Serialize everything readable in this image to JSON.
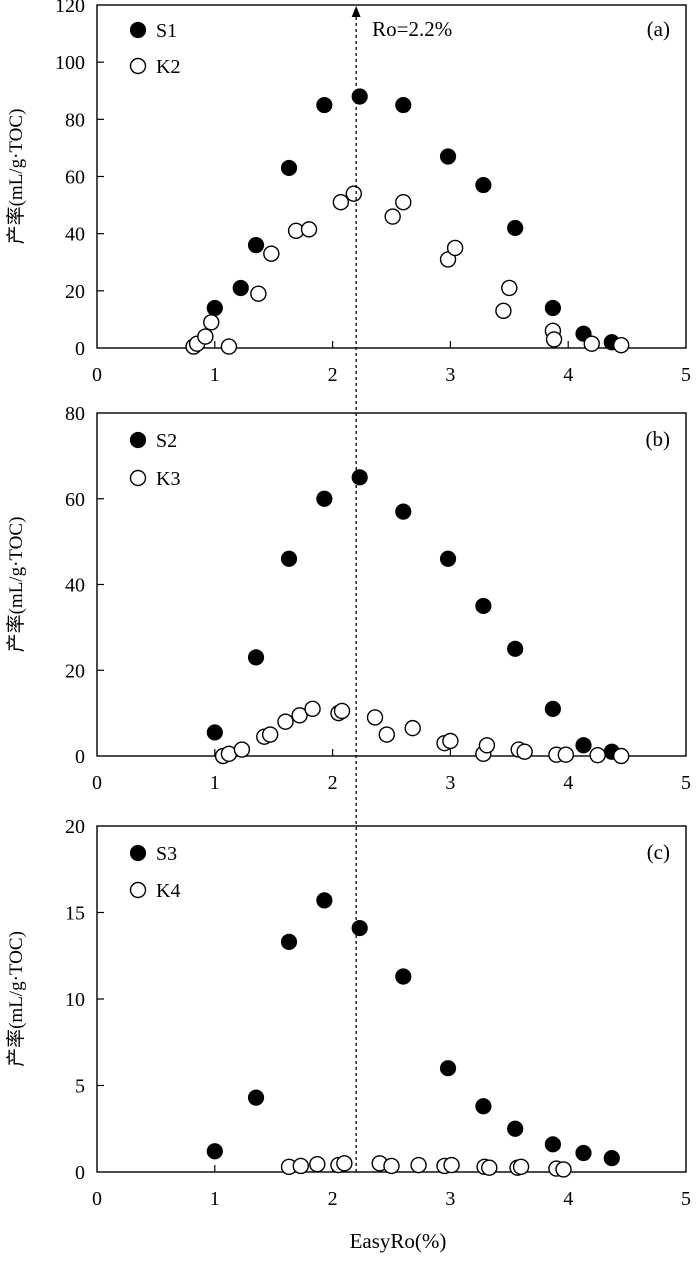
{
  "chart_data": [
    {
      "type": "scatter",
      "panel_label": "(a)",
      "annotation": "Ro=2.2%",
      "annotation_x": 2.2,
      "ylabel": "产率(mL/g·TOC)",
      "xlim": [
        0,
        5
      ],
      "ylim": [
        0,
        120
      ],
      "xticks": [
        "0",
        "1",
        "2",
        "3",
        "4",
        "5"
      ],
      "yticks": [
        "0",
        "20",
        "40",
        "60",
        "80",
        "100",
        "120"
      ],
      "legend_position": "top-left",
      "series": [
        {
          "name": "S1",
          "marker": "filled-circle",
          "x": [
            1.0,
            1.22,
            1.35,
            1.63,
            1.93,
            2.23,
            2.6,
            2.98,
            3.28,
            3.55,
            3.87,
            4.13,
            4.37
          ],
          "y": [
            14,
            21,
            36,
            63,
            85,
            88,
            85,
            67,
            57,
            42,
            14,
            5,
            2
          ]
        },
        {
          "name": "K2",
          "marker": "open-circle",
          "x": [
            0.82,
            0.85,
            0.92,
            0.97,
            1.12,
            1.37,
            1.48,
            1.69,
            1.8,
            2.07,
            2.18,
            2.51,
            2.6,
            2.98,
            3.04,
            3.45,
            3.5,
            3.87,
            3.88,
            4.2,
            4.45
          ],
          "y": [
            0.5,
            1.5,
            4,
            9,
            0.5,
            19,
            33,
            41,
            41.5,
            51,
            54,
            46,
            51,
            31,
            35,
            13,
            21,
            6,
            3,
            1.5,
            1
          ]
        }
      ]
    },
    {
      "type": "scatter",
      "panel_label": "(b)",
      "ylabel": "产率(mL/g·TOC)",
      "xlim": [
        0,
        5
      ],
      "ylim": [
        0,
        80
      ],
      "xticks": [
        "0",
        "1",
        "2",
        "3",
        "4",
        "5"
      ],
      "yticks": [
        "0",
        "20",
        "40",
        "60",
        "80"
      ],
      "legend_position": "top-left",
      "series": [
        {
          "name": "S2",
          "marker": "filled-circle",
          "x": [
            1.0,
            1.35,
            1.63,
            1.93,
            2.23,
            2.6,
            2.98,
            3.28,
            3.55,
            3.87,
            4.13,
            4.37
          ],
          "y": [
            5.5,
            23,
            46,
            60,
            65,
            57,
            46,
            35,
            25,
            11,
            2.5,
            1
          ]
        },
        {
          "name": "K3",
          "marker": "open-circle",
          "x": [
            1.07,
            1.12,
            1.23,
            1.42,
            1.47,
            1.6,
            1.72,
            1.83,
            2.05,
            2.08,
            2.36,
            2.46,
            2.68,
            2.95,
            3.0,
            3.28,
            3.31,
            3.58,
            3.63,
            3.9,
            3.98,
            4.25,
            4.45
          ],
          "y": [
            0,
            0.5,
            1.5,
            4.5,
            5,
            8,
            9.5,
            11,
            10,
            10.5,
            9,
            5,
            6.5,
            3,
            3.5,
            0.5,
            2.5,
            1.5,
            1,
            0.3,
            0.3,
            0.2,
            0
          ]
        }
      ]
    },
    {
      "type": "scatter",
      "panel_label": "(c)",
      "xlabel": "EasyRo(%)",
      "ylabel": "产率(mL/g·TOC)",
      "xlim": [
        0,
        5
      ],
      "ylim": [
        0,
        20
      ],
      "xticks": [
        "0",
        "1",
        "2",
        "3",
        "4",
        "5"
      ],
      "yticks": [
        "0",
        "5",
        "10",
        "15",
        "20"
      ],
      "legend_position": "top-left",
      "series": [
        {
          "name": "S3",
          "marker": "filled-circle",
          "x": [
            1.0,
            1.35,
            1.63,
            1.93,
            2.23,
            2.6,
            2.98,
            3.28,
            3.55,
            3.87,
            4.13,
            4.37
          ],
          "y": [
            1.2,
            4.3,
            13.3,
            15.7,
            14.1,
            11.3,
            6.0,
            3.8,
            2.5,
            1.6,
            1.1,
            0.8
          ]
        },
        {
          "name": "K4",
          "marker": "open-circle",
          "x": [
            1.63,
            1.73,
            1.87,
            2.05,
            2.1,
            2.4,
            2.5,
            2.73,
            2.95,
            3.01,
            3.29,
            3.33,
            3.57,
            3.6,
            3.9,
            3.96
          ],
          "y": [
            0.3,
            0.35,
            0.45,
            0.4,
            0.5,
            0.5,
            0.35,
            0.4,
            0.35,
            0.4,
            0.3,
            0.25,
            0.25,
            0.3,
            0.2,
            0.15
          ]
        }
      ]
    }
  ]
}
